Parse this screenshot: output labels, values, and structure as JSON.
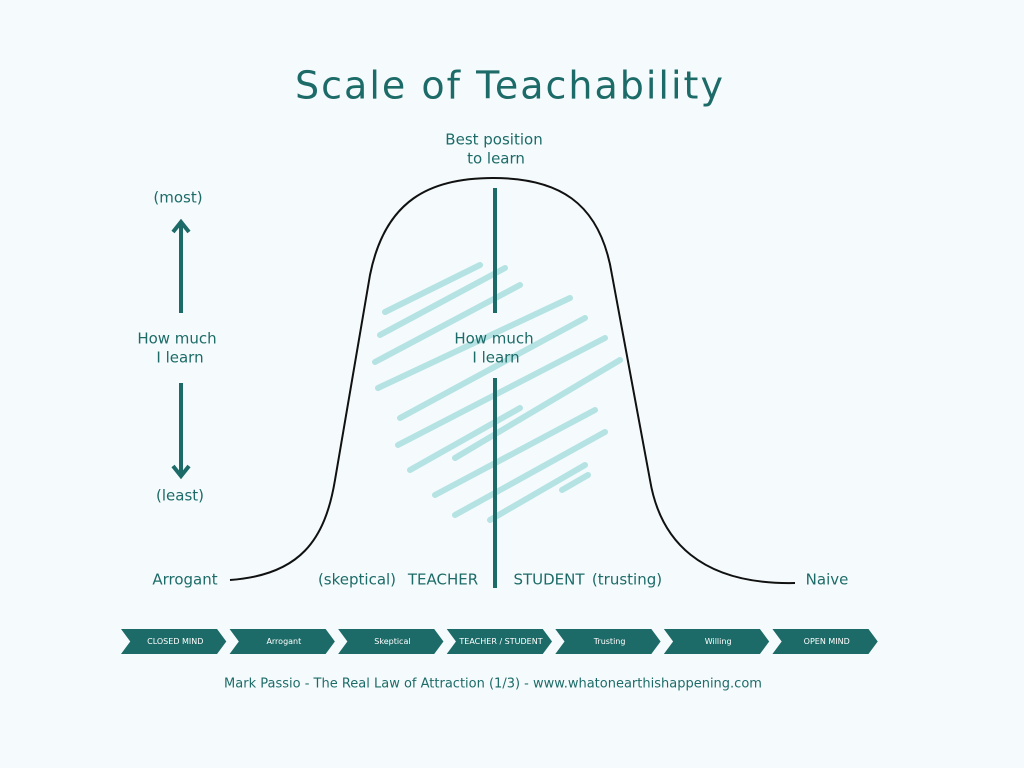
{
  "title": "Scale of Teachability",
  "peak_label": [
    "Best position",
    "to learn"
  ],
  "axis": {
    "top": "(most)",
    "label": [
      "How much",
      "I learn"
    ],
    "bottom": "(least)"
  },
  "center_label": [
    "How much",
    "I learn"
  ],
  "curve_labels": {
    "left": "Arrogant",
    "skeptical": "(skeptical)",
    "teacher": "TEACHER",
    "student": "STUDENT",
    "trusting": "(trusting)",
    "right": "Naive"
  },
  "scale": [
    "CLOSED MIND",
    "Arrogant",
    "Skeptical",
    "TEACHER / STUDENT",
    "Trusting",
    "Willing",
    "OPEN MIND"
  ],
  "footer": "Mark Passio - The Real Law of Attraction (1/3) - www.whatonearthishappening.com"
}
